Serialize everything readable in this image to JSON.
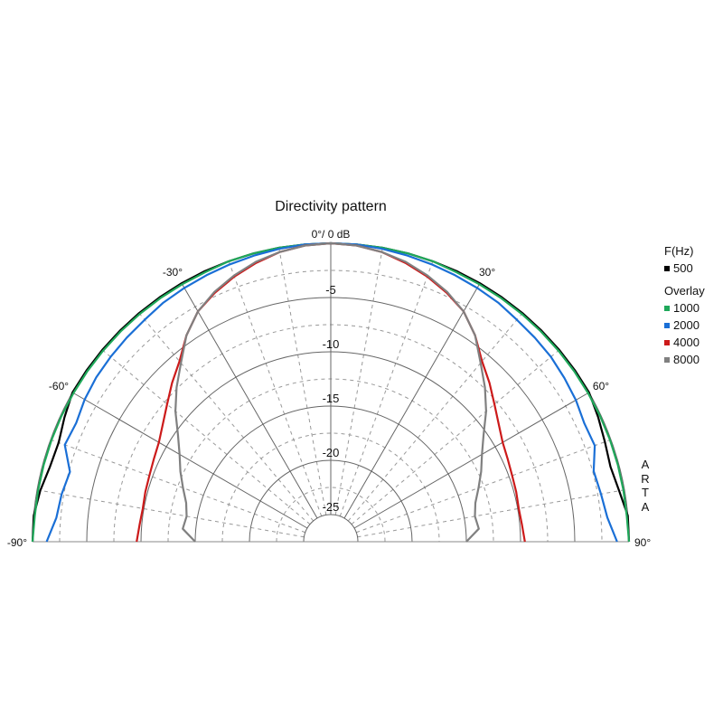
{
  "chart_data": {
    "type": "polar",
    "title": "Directivity pattern",
    "top_label": "0°/ 0 dB",
    "angle_labels": [
      {
        "angle": -90,
        "text": "-90°"
      },
      {
        "angle": -60,
        "text": "-60°"
      },
      {
        "angle": -30,
        "text": "-30°"
      },
      {
        "angle": 30,
        "text": "30°"
      },
      {
        "angle": 60,
        "text": "60°"
      },
      {
        "angle": 90,
        "text": "90°"
      }
    ],
    "radial_tick_labels": [
      "-5",
      "-10",
      "-15",
      "-20",
      "-25"
    ],
    "radial_ticks": [
      -5,
      -10,
      -15,
      -20,
      -25
    ],
    "rlim": [
      -25,
      0
    ],
    "angle_range": [
      -90,
      90
    ],
    "grid": true,
    "angles": [
      -90,
      -85,
      -80,
      -75,
      -70,
      -65,
      -60,
      -55,
      -50,
      -45,
      -40,
      -35,
      -30,
      -25,
      -20,
      -15,
      -10,
      -5,
      0,
      5,
      10,
      15,
      20,
      25,
      30,
      35,
      40,
      45,
      50,
      55,
      60,
      65,
      70,
      75,
      80,
      85,
      90
    ],
    "series": [
      {
        "name": "500",
        "color": "#000000",
        "values": [
          0,
          0,
          -0.3,
          -0.7,
          -0.8,
          -0.4,
          0,
          0,
          0,
          0,
          0,
          0,
          0,
          0,
          0,
          0,
          0,
          0,
          0,
          0,
          0,
          0,
          0,
          0,
          0,
          0,
          0,
          0,
          0,
          0,
          0,
          -0.3,
          -0.6,
          -0.8,
          -0.5,
          0,
          0
        ]
      },
      {
        "name": "1000",
        "color": "#1fa85a",
        "values": [
          0,
          -0.1,
          -0.1,
          -0.1,
          -0.1,
          -0.1,
          -0.1,
          -0.1,
          -0.1,
          -0.1,
          -0.1,
          -0.1,
          -0.1,
          -0.1,
          0,
          0,
          0,
          0,
          0,
          0,
          0,
          0,
          0,
          -0.1,
          -0.1,
          -0.1,
          -0.1,
          -0.1,
          -0.1,
          -0.1,
          -0.1,
          -0.1,
          -0.1,
          -0.1,
          -0.1,
          -0.1,
          0
        ]
      },
      {
        "name": "2000",
        "color": "#1a6fd6",
        "values": [
          -1.3,
          -2.1,
          -2.3,
          -2.6,
          -1.4,
          -1.6,
          -1.3,
          -1.1,
          -1.0,
          -0.9,
          -0.8,
          -0.6,
          -0.5,
          -0.4,
          -0.3,
          -0.2,
          -0.1,
          0,
          0,
          0,
          -0.1,
          -0.2,
          -0.3,
          -0.4,
          -0.5,
          -0.6,
          -0.8,
          -0.9,
          -1.0,
          -1.2,
          -1.4,
          -1.7,
          -1.6,
          -2.4,
          -2.2,
          -1.9,
          -1.1
        ]
      },
      {
        "name": "4000",
        "color": "#cc1a1a",
        "values": [
          -9.6,
          -9.8,
          -9.9,
          -9.8,
          -9.7,
          -9.5,
          -9.2,
          -8.6,
          -7.8,
          -6.8,
          -5.8,
          -4.3,
          -3,
          -2.2,
          -1.5,
          -0.9,
          -0.4,
          -0.1,
          0,
          -0.1,
          -0.4,
          -0.9,
          -1.5,
          -2.2,
          -3,
          -4.3,
          -5.8,
          -6.8,
          -7.8,
          -8.6,
          -9.2,
          -9.5,
          -9.7,
          -9.8,
          -9.9,
          -9.8,
          -9.6
        ]
      },
      {
        "name": "8000",
        "color": "#808080",
        "values": [
          -15,
          -13.8,
          -14,
          -13.7,
          -13,
          -12.2,
          -11.4,
          -10.3,
          -8.8,
          -7.4,
          -6,
          -4.3,
          -3,
          -2.1,
          -1.4,
          -0.8,
          -0.4,
          -0.1,
          0,
          -0.1,
          -0.4,
          -0.8,
          -1.4,
          -2.1,
          -3,
          -4.3,
          -6,
          -7.4,
          -8.8,
          -10.3,
          -11.4,
          -12.2,
          -13,
          -13.7,
          -14,
          -13.8,
          -15
        ]
      }
    ]
  },
  "legend": {
    "title": "F(Hz)",
    "main": {
      "label": "500",
      "color": "#000000"
    },
    "overlay_title": "Overlay",
    "overlay": [
      {
        "label": "1000",
        "color": "#1fa85a"
      },
      {
        "label": "2000",
        "color": "#1a6fd6"
      },
      {
        "label": "4000",
        "color": "#cc1a1a"
      },
      {
        "label": "8000",
        "color": "#808080"
      }
    ]
  },
  "watermark": [
    "A",
    "R",
    "T",
    "A"
  ]
}
